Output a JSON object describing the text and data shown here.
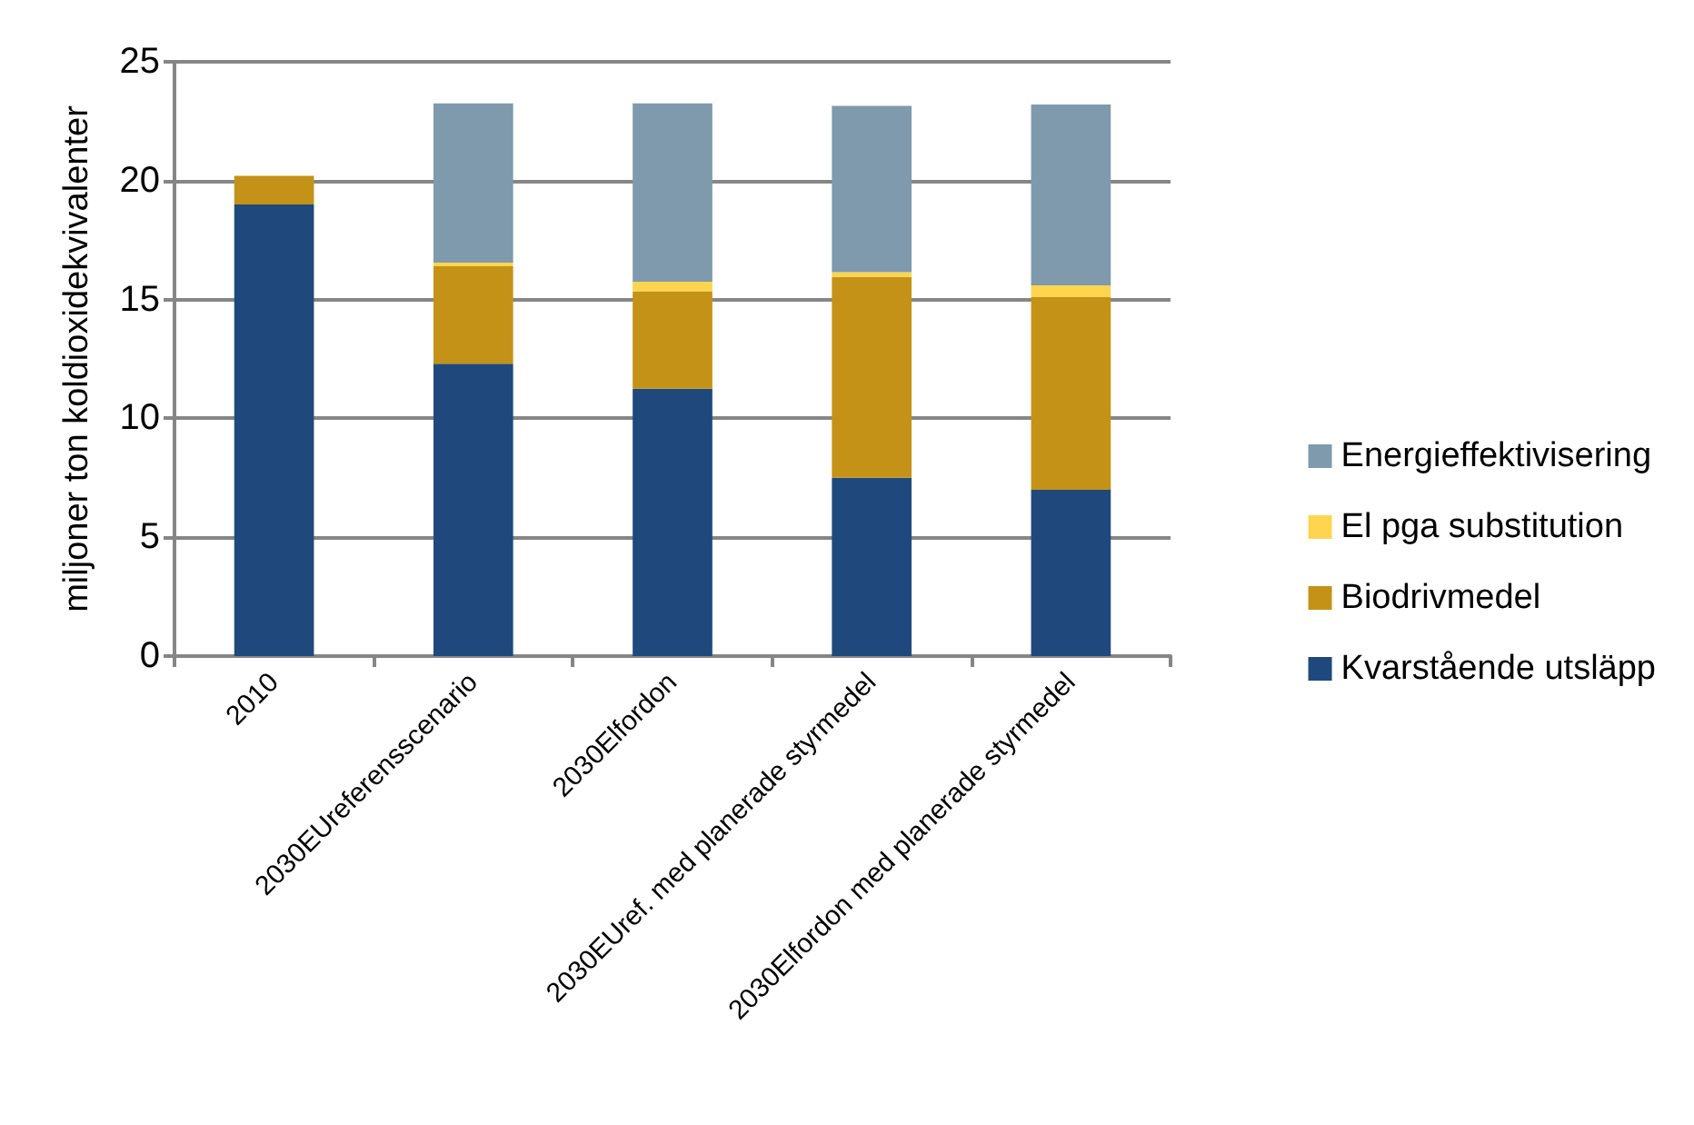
{
  "chart_data": {
    "type": "bar",
    "ylabel": "miljoner ton koldioxidekvivalenter",
    "categories": [
      "2010",
      "2030EUreferensscenario",
      "2030Elfordon",
      "2030EUref. med planerade styrmedel",
      "2030Elfordon med planerade styrmedel"
    ],
    "stacked": true,
    "series": [
      {
        "name": "Kvarstående utsläpp",
        "color": "#1f497d",
        "values": [
          19.0,
          12.3,
          11.25,
          7.5,
          7.0
        ]
      },
      {
        "name": "Biodrivmedel",
        "color": "#c49216",
        "values": [
          1.2,
          4.1,
          4.1,
          8.45,
          8.1
        ]
      },
      {
        "name": "El pga substitution",
        "color": "#ffd54f",
        "values": [
          0,
          0.15,
          0.4,
          0.2,
          0.5
        ]
      },
      {
        "name": "Energieffektivisering",
        "color": "#7f9aad",
        "values": [
          0,
          6.7,
          7.5,
          7.0,
          7.6
        ]
      }
    ],
    "ylim": [
      0,
      25
    ],
    "yticks": [
      0,
      5,
      10,
      15,
      20,
      25
    ],
    "grid": "y",
    "legend": "right"
  }
}
